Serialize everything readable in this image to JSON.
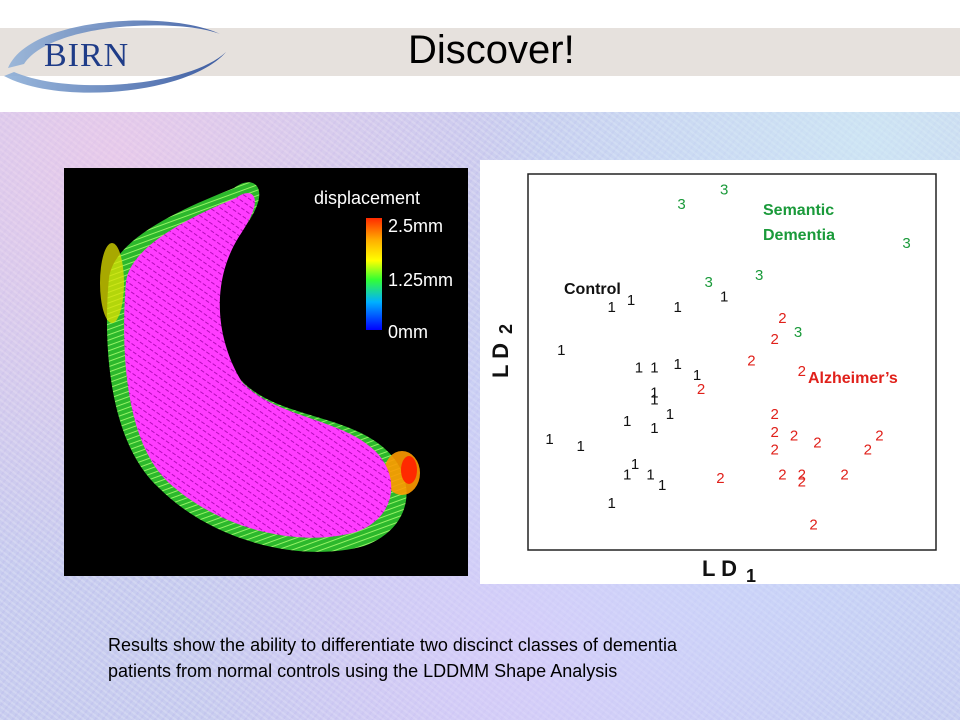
{
  "header": {
    "logo_text": "BIRN",
    "title": "Discover!"
  },
  "brain_figure": {
    "colorbar_title": "displacement",
    "colorbar_labels": [
      "2.5mm",
      "1.25mm",
      "0mm"
    ],
    "colorbar_colors": [
      "#ff2a00",
      "#ffb000",
      "#ffff00",
      "#33ff33",
      "#00b0ff",
      "#0000ff"
    ],
    "colors": {
      "surface": "#ff00ff",
      "background": "#000000"
    }
  },
  "scatter_plot": {
    "xlabel": "L D",
    "xlabel_subscript": "1",
    "ylabel": "L D",
    "ylabel_subscript": "2",
    "annotations": {
      "semantic": [
        "Semantic",
        "Dementia"
      ],
      "control": "Control",
      "alzheimers": "Alzheimer’s"
    },
    "colors": {
      "group1": "#111111",
      "group2": "#e0201a",
      "group3": "#1a9a3a"
    }
  },
  "chart_data": {
    "type": "scatter",
    "title": "",
    "xlabel": "LD1",
    "ylabel": "LD2",
    "xlim": [
      0,
      100
    ],
    "ylim": [
      0,
      100
    ],
    "grid": false,
    "series": [
      {
        "name": "1",
        "points": [
          [
            19,
            64
          ],
          [
            24,
            66
          ],
          [
            36,
            64
          ],
          [
            48,
            67
          ],
          [
            6,
            52
          ],
          [
            26,
            47
          ],
          [
            30,
            47
          ],
          [
            36,
            48
          ],
          [
            41,
            45
          ],
          [
            30,
            40
          ],
          [
            30,
            38
          ],
          [
            34,
            34
          ],
          [
            23,
            32
          ],
          [
            30,
            30
          ],
          [
            3,
            27
          ],
          [
            11,
            25
          ],
          [
            25,
            20
          ],
          [
            23,
            17
          ],
          [
            29,
            17
          ],
          [
            32,
            14
          ],
          [
            19,
            9
          ]
        ]
      },
      {
        "name": "2",
        "points": [
          [
            63,
            61
          ],
          [
            61,
            55
          ],
          [
            55,
            49
          ],
          [
            68,
            46
          ],
          [
            42,
            41
          ],
          [
            61,
            34
          ],
          [
            61,
            29
          ],
          [
            66,
            28
          ],
          [
            72,
            26
          ],
          [
            88,
            28
          ],
          [
            61,
            24
          ],
          [
            85,
            24
          ],
          [
            47,
            16
          ],
          [
            63,
            17
          ],
          [
            68,
            17
          ],
          [
            68,
            15
          ],
          [
            79,
            17
          ],
          [
            71,
            3
          ]
        ]
      },
      {
        "name": "3",
        "points": [
          [
            48,
            97
          ],
          [
            37,
            93
          ],
          [
            95,
            82
          ],
          [
            57,
            73
          ],
          [
            44,
            71
          ],
          [
            67,
            57
          ]
        ]
      }
    ]
  },
  "caption": {
    "line1": "Results show the ability to differentiate two discinct classes of dementia",
    "line2": "patients from normal controls using the LDDMM Shape Analysis"
  }
}
